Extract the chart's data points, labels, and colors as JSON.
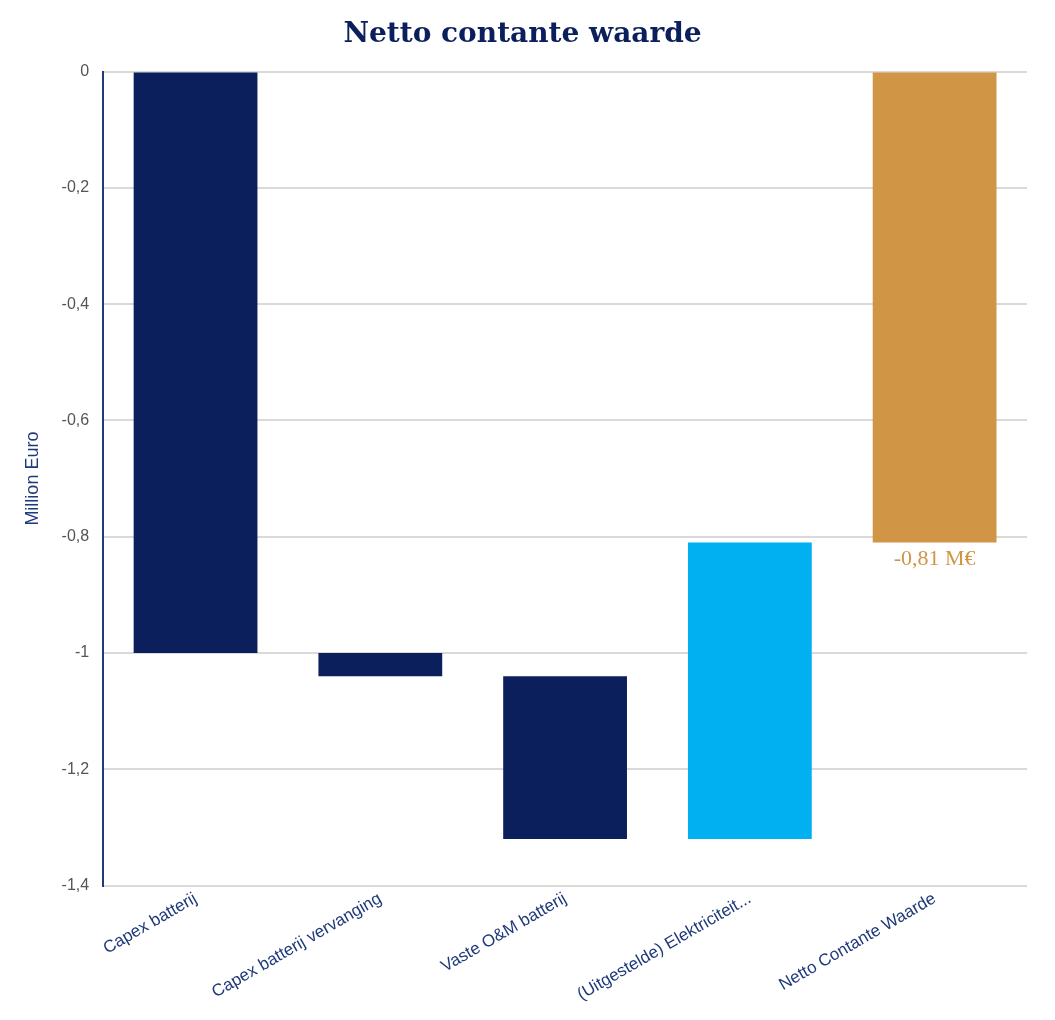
{
  "chart_data": {
    "type": "bar",
    "title": "Netto contante waarde",
    "ylabel": "Million Euro",
    "categories": [
      "Capex batterij",
      "Capex batterij vervanging",
      "Vaste O&M batterij",
      "(Uitgestelde) Elektriciteit...",
      "Netto Contante Waarde"
    ],
    "values": [
      -1,
      -0.04,
      -0.28,
      0.51,
      -0.81
    ],
    "base": [
      0,
      -1,
      -1.04,
      -1.32,
      0
    ],
    "colors": [
      "#0b1f5c",
      "#0b1f5c",
      "#0b1f5c",
      "#00b0f0",
      "#d09545"
    ],
    "value_labels": [
      null,
      null,
      null,
      null,
      "-0,81 M€"
    ],
    "ylim": [
      -1.4,
      0
    ],
    "yticks": [
      {
        "value": 0,
        "label": "0"
      },
      {
        "value": -0.2,
        "label": "-0,2"
      },
      {
        "value": -0.4,
        "label": "-0,4"
      },
      {
        "value": -0.6,
        "label": "-0,6"
      },
      {
        "value": -0.8,
        "label": "-0,8"
      },
      {
        "value": -1,
        "label": "-1"
      },
      {
        "value": -1.2,
        "label": "-1,2"
      },
      {
        "value": -1.4,
        "label": "-1,4"
      }
    ],
    "grid": "y",
    "legend": false
  }
}
